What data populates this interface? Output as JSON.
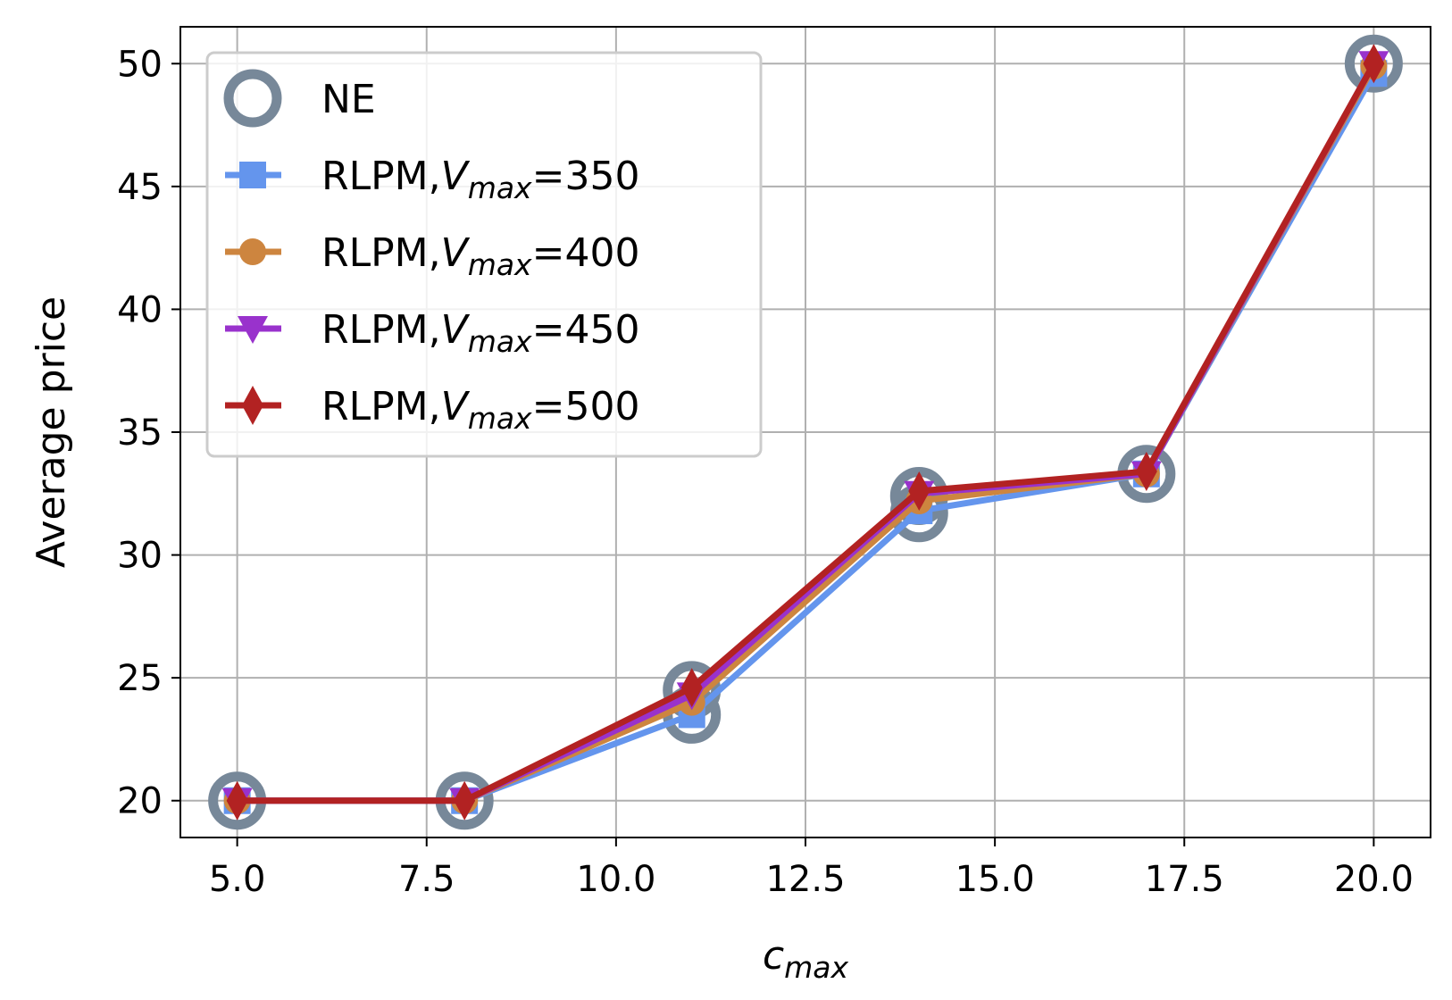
{
  "chart_data": {
    "type": "line",
    "x": [
      5,
      8,
      11,
      14,
      17,
      20
    ],
    "xlabel": "c",
    "xlabel_sub": "max",
    "ylabel": "Average price",
    "xlim": [
      4.25,
      20.75
    ],
    "ylim": [
      18.5,
      51.5
    ],
    "xticks": [
      5.0,
      7.5,
      10.0,
      12.5,
      15.0,
      17.5,
      20.0
    ],
    "xtick_labels": [
      "5.0",
      "7.5",
      "10.0",
      "12.5",
      "15.0",
      "17.5",
      "20.0"
    ],
    "yticks": [
      20,
      25,
      30,
      35,
      40,
      45,
      50
    ],
    "ytick_labels": [
      "20",
      "25",
      "30",
      "35",
      "40",
      "45",
      "50"
    ],
    "grid": true,
    "legend_position": "top-left",
    "series": [
      {
        "name": "NE",
        "marker": "hollow-circle",
        "color": "#778899",
        "line": false,
        "points": [
          [
            5,
            20.0
          ],
          [
            8,
            20.0
          ],
          [
            11,
            23.5
          ],
          [
            11,
            24.5
          ],
          [
            14,
            31.7
          ],
          [
            14,
            32.4
          ],
          [
            17,
            33.3
          ],
          [
            20,
            50.0
          ]
        ]
      },
      {
        "name": "RLPM,V",
        "name_sub": "max",
        "name_suffix": "=350",
        "marker": "square",
        "color": "#6495ED",
        "values": [
          20.0,
          20.0,
          23.5,
          31.8,
          33.3,
          49.6
        ]
      },
      {
        "name": "RLPM,V",
        "name_sub": "max",
        "name_suffix": "=400",
        "marker": "circle",
        "color": "#CD853F",
        "values": [
          20.0,
          20.0,
          24.0,
          32.2,
          33.3,
          49.9
        ]
      },
      {
        "name": "RLPM,V",
        "name_sub": "max",
        "name_suffix": "=450",
        "marker": "triangle-down",
        "color": "#9932CC",
        "values": [
          20.0,
          20.0,
          24.3,
          32.5,
          33.3,
          50.0
        ]
      },
      {
        "name": "RLPM,V",
        "name_sub": "max",
        "name_suffix": "=500",
        "marker": "diamond",
        "color": "#B22222",
        "values": [
          20.0,
          20.0,
          24.6,
          32.6,
          33.4,
          50.0
        ]
      }
    ]
  }
}
